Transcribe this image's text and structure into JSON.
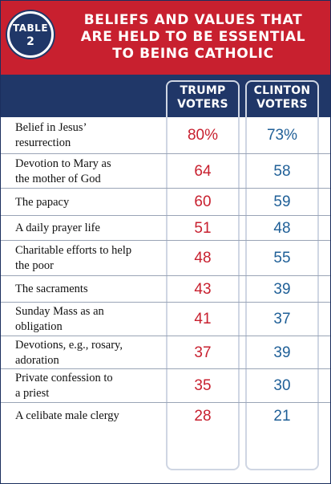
{
  "table_label": {
    "line1": "TABLE",
    "line2": "2"
  },
  "title": {
    "line1": "BELIEFS AND VALUES THAT",
    "line2": "ARE HELD TO BE ESSENTIAL",
    "line3": "TO BEING CATHOLIC"
  },
  "columns": [
    {
      "line1": "TRUMP",
      "line2": "VOTERS"
    },
    {
      "line1": "CLINTON",
      "line2": "VOTERS"
    }
  ],
  "colors": {
    "red": "#c8202f",
    "navy": "#203768",
    "blue": "#1f5f97"
  },
  "chart_data": {
    "type": "table",
    "title": "BELIEFS AND VALUES THAT ARE HELD TO BE ESSENTIAL TO BEING CATHOLIC",
    "categories": [
      "Belief in Jesus’ resurrection",
      "Devotion to Mary as the mother of God",
      "The papacy",
      "A daily prayer life",
      "Charitable efforts to help the poor",
      "The sacraments",
      "Sunday Mass as an obligation",
      "Devotions, e.g., rosary, adoration",
      "Private confession to a priest",
      "A celibate male clergy"
    ],
    "series": [
      {
        "name": "TRUMP VOTERS",
        "values": [
          80,
          64,
          60,
          51,
          48,
          43,
          41,
          37,
          35,
          28
        ]
      },
      {
        "name": "CLINTON VOTERS",
        "values": [
          73,
          58,
          59,
          48,
          55,
          39,
          37,
          39,
          30,
          21
        ]
      }
    ],
    "unit": "%"
  },
  "rows": [
    {
      "label_lines": [
        "Belief in Jesus’",
        "resurrection"
      ],
      "trump": "80%",
      "clinton": "73%"
    },
    {
      "label_lines": [
        "Devotion to Mary as",
        "the mother of God"
      ],
      "trump": "64",
      "clinton": "58"
    },
    {
      "label_lines": [
        "The papacy"
      ],
      "trump": "60",
      "clinton": "59"
    },
    {
      "label_lines": [
        "A daily prayer life"
      ],
      "trump": "51",
      "clinton": "48"
    },
    {
      "label_lines": [
        "Charitable efforts to help",
        "the poor"
      ],
      "trump": "48",
      "clinton": "55"
    },
    {
      "label_lines": [
        "The sacraments"
      ],
      "trump": "43",
      "clinton": "39"
    },
    {
      "label_lines": [
        "Sunday Mass as an",
        "obligation"
      ],
      "trump": "41",
      "clinton": "37"
    },
    {
      "label_lines": [
        "Devotions, e.g., rosary,",
        "adoration"
      ],
      "trump": "37",
      "clinton": "39"
    },
    {
      "label_lines": [
        "Private confession to",
        "a priest"
      ],
      "trump": "35",
      "clinton": "30"
    },
    {
      "label_lines": [
        "A celibate male clergy"
      ],
      "trump": "28",
      "clinton": "21"
    }
  ]
}
